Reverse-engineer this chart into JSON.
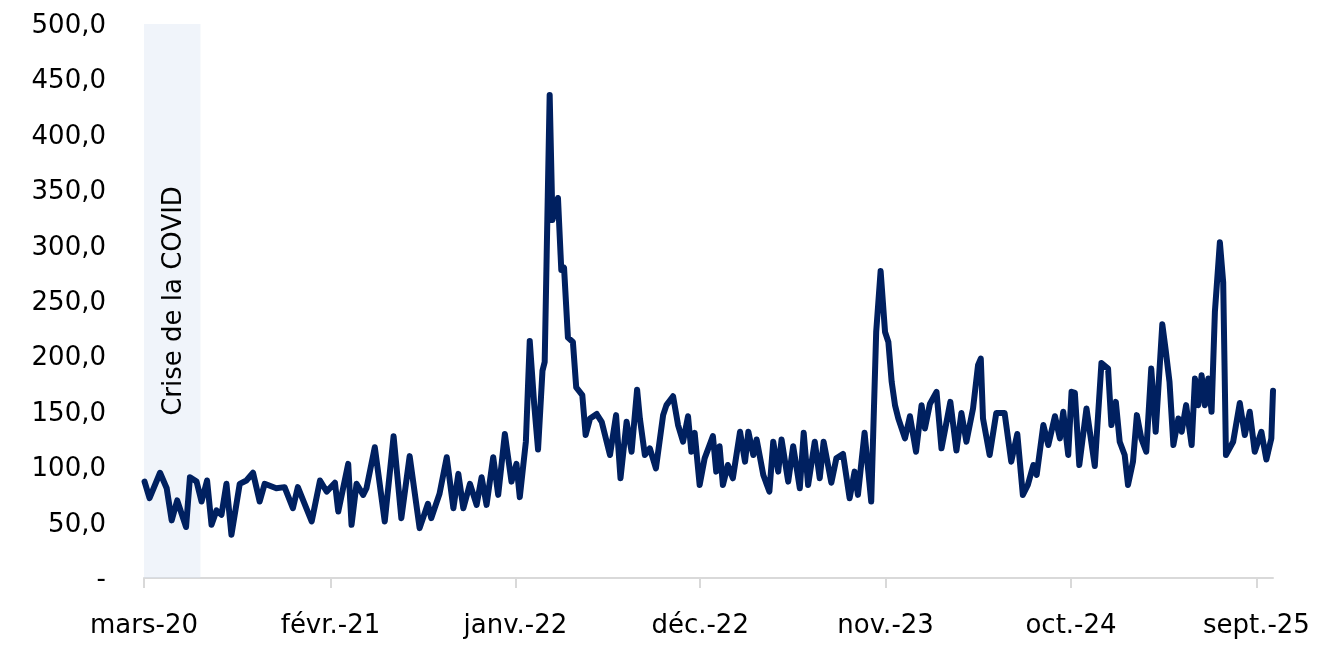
{
  "chart_data": {
    "type": "line",
    "color": "#002060",
    "x": [
      "2020-03-02",
      "2020-03-11",
      "2020-03-30",
      "2020-04-11",
      "2020-04-20",
      "2020-04-30",
      "2020-05-16",
      "2020-05-23",
      "2020-06-04",
      "2020-06-13",
      "2020-06-23",
      "2020-07-01",
      "2020-07-10",
      "2020-07-19",
      "2020-07-28",
      "2020-08-06",
      "2020-08-21",
      "2020-09-02",
      "2020-09-14",
      "2020-09-26",
      "2020-10-05",
      "2020-10-26",
      "2020-11-10",
      "2020-11-25",
      "2020-12-04",
      "2020-12-29",
      "2021-01-13",
      "2021-01-25",
      "2021-02-09",
      "2021-02-15",
      "2021-03-05",
      "2021-03-11",
      "2021-03-20",
      "2021-04-01",
      "2021-04-07",
      "2021-04-22",
      "2021-05-10",
      "2021-05-26",
      "2021-06-09",
      "2021-06-24",
      "2021-07-12",
      "2021-07-27",
      "2021-08-02",
      "2021-08-17",
      "2021-08-30",
      "2021-09-11",
      "2021-09-20",
      "2021-09-29",
      "2021-10-11",
      "2021-10-23",
      "2021-11-01",
      "2021-11-10",
      "2021-11-22",
      "2021-12-01",
      "2021-12-13",
      "2021-12-25",
      "2022-01-03",
      "2022-01-09",
      "2022-01-20",
      "2022-01-27",
      "2022-02-04",
      "2022-02-11",
      "2022-02-19",
      "2022-02-23",
      "2022-03-04",
      "2022-03-09",
      "2022-03-19",
      "2022-03-25",
      "2022-03-30",
      "2022-04-06",
      "2022-04-15",
      "2022-04-21",
      "2022-05-02",
      "2022-05-08",
      "2022-05-16",
      "2022-05-28",
      "2022-06-06",
      "2022-06-21",
      "2022-07-02",
      "2022-07-10",
      "2022-07-21",
      "2022-07-30",
      "2022-08-09",
      "2022-08-14",
      "2022-08-23",
      "2022-09-01",
      "2022-09-12",
      "2022-09-25",
      "2022-10-01",
      "2022-10-13",
      "2022-10-22",
      "2022-10-31",
      "2022-11-09",
      "2022-11-15",
      "2022-11-21",
      "2022-11-30",
      "2022-12-09",
      "2022-12-24",
      "2022-12-30",
      "2023-01-05",
      "2023-01-11",
      "2023-01-20",
      "2023-01-29",
      "2023-02-11",
      "2023-02-20",
      "2023-02-26",
      "2023-03-07",
      "2023-03-13",
      "2023-03-25",
      "2023-04-05",
      "2023-04-12",
      "2023-04-21",
      "2023-04-27",
      "2023-05-09",
      "2023-05-18",
      "2023-05-30",
      "2023-06-06",
      "2023-06-14",
      "2023-06-26",
      "2023-07-05",
      "2023-07-12",
      "2023-07-26",
      "2023-08-04",
      "2023-08-16",
      "2023-08-28",
      "2023-09-06",
      "2023-09-12",
      "2023-09-24",
      "2023-10-06",
      "2023-10-15",
      "2023-10-23",
      "2023-10-31",
      "2023-11-06",
      "2023-11-12",
      "2023-11-18",
      "2023-11-24",
      "2023-12-06",
      "2023-12-15",
      "2023-12-26",
      "2024-01-05",
      "2024-01-11",
      "2024-01-20",
      "2024-02-01",
      "2024-02-10",
      "2024-02-26",
      "2024-03-08",
      "2024-03-17",
      "2024-03-26",
      "2024-04-07",
      "2024-04-16",
      "2024-04-21",
      "2024-04-25",
      "2024-05-07",
      "2024-05-19",
      "2024-06-03",
      "2024-06-15",
      "2024-06-26",
      "2024-07-06",
      "2024-07-15",
      "2024-07-25",
      "2024-07-31",
      "2024-08-12",
      "2024-08-21",
      "2024-09-02",
      "2024-09-11",
      "2024-09-17",
      "2024-09-26",
      "2024-10-02",
      "2024-10-08",
      "2024-10-16",
      "2024-10-29",
      "2024-11-13",
      "2024-11-25",
      "2024-12-07",
      "2024-12-13",
      "2024-12-21",
      "2024-12-28",
      "2025-01-06",
      "2025-01-12",
      "2025-01-21",
      "2025-01-28",
      "2025-02-05",
      "2025-02-14",
      "2025-02-23",
      "2025-03-03",
      "2025-03-15",
      "2025-03-21",
      "2025-03-28",
      "2025-04-04",
      "2025-04-13",
      "2025-04-19",
      "2025-04-27",
      "2025-05-07",
      "2025-05-13",
      "2025-05-19",
      "2025-05-25",
      "2025-05-31",
      "2025-06-06",
      "2025-06-12",
      "2025-06-18",
      "2025-06-27",
      "2025-07-03",
      "2025-07-08",
      "2025-07-21",
      "2025-08-02",
      "2025-08-11",
      "2025-08-20",
      "2025-08-29",
      "2025-09-10",
      "2025-09-19",
      "2025-09-28",
      "2025-10-01"
    ],
    "values": [
      87,
      72,
      95,
      81,
      52,
      70,
      46,
      91,
      87,
      69,
      88,
      48,
      61,
      57,
      85,
      39,
      85,
      88,
      95,
      69,
      85,
      81,
      82,
      63,
      82,
      51,
      88,
      78,
      86,
      60,
      103,
      48,
      85,
      75,
      81,
      118,
      51,
      128,
      54,
      110,
      45,
      67,
      54,
      76,
      109,
      63,
      94,
      63,
      85,
      66,
      91,
      66,
      109,
      75,
      130,
      87,
      103,
      73,
      123,
      214,
      157,
      116,
      187,
      195,
      436,
      323,
      343,
      278,
      280,
      217,
      213,
      172,
      165,
      129,
      144,
      148,
      141,
      111,
      147,
      90,
      141,
      114,
      170,
      144,
      111,
      117,
      99,
      147,
      156,
      164,
      138,
      123,
      146,
      114,
      131,
      84,
      108,
      128,
      96,
      119,
      84,
      102,
      90,
      132,
      105,
      132,
      111,
      125,
      93,
      78,
      123,
      96,
      125,
      87,
      119,
      81,
      131,
      84,
      123,
      90,
      123,
      86,
      108,
      112,
      72,
      96,
      75,
      131,
      69,
      222,
      277,
      222,
      213,
      177,
      156,
      144,
      126,
      146,
      114,
      156,
      135,
      157,
      168,
      117,
      159,
      115,
      149,
      123,
      153,
      192,
      198,
      144,
      111,
      149,
      149,
      105,
      130,
      75,
      84,
      102,
      93,
      138,
      120,
      146,
      126,
      150,
      111,
      168,
      167,
      102,
      153,
      101,
      194,
      189,
      138,
      159,
      123,
      111,
      84,
      105,
      147,
      126,
      114,
      189,
      132,
      229,
      206,
      177,
      120,
      144,
      132,
      156,
      120,
      180,
      156,
      183,
      156,
      180,
      150,
      240,
      303,
      267,
      111,
      123,
      158,
      129,
      150,
      114,
      132,
      107,
      126,
      169
    ],
    "xlim": [
      "2020-03-01",
      "2025-10-01"
    ],
    "xticks": [
      {
        "value": "2020-03-01",
        "label": "mars-20"
      },
      {
        "value": "2021-02-01",
        "label": "févr.-21"
      },
      {
        "value": "2022-01-01",
        "label": "janv.-22"
      },
      {
        "value": "2022-12-01",
        "label": "déc.-22"
      },
      {
        "value": "2023-11-01",
        "label": "nov.-23"
      },
      {
        "value": "2024-10-01",
        "label": "oct.-24"
      },
      {
        "value": "2025-09-01",
        "label": "sept.-25"
      }
    ],
    "ylim": [
      0,
      500
    ],
    "yticks": [
      {
        "value": 0,
        "label": "-"
      },
      {
        "value": 50,
        "label": "50,0"
      },
      {
        "value": 100,
        "label": "100,0"
      },
      {
        "value": 150,
        "label": "150,0"
      },
      {
        "value": 200,
        "label": "200,0"
      },
      {
        "value": 250,
        "label": "250,0"
      },
      {
        "value": 300,
        "label": "300,0"
      },
      {
        "value": 350,
        "label": "350,0"
      },
      {
        "value": 400,
        "label": "400,0"
      },
      {
        "value": 450,
        "label": "450,0"
      },
      {
        "value": 500,
        "label": "500,0"
      }
    ],
    "bands": [
      {
        "axis": "x",
        "from": "2020-03-01",
        "to": "2020-06-11",
        "label": "Crise de la COVID",
        "color": "#dae3f3"
      }
    ],
    "grid": false
  }
}
